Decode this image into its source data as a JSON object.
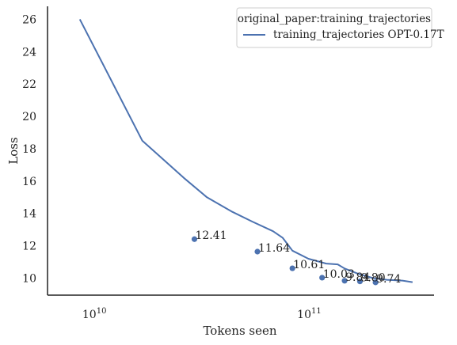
{
  "chart_data": {
    "type": "line",
    "xlabel": "Tokens seen",
    "ylabel": "Loss",
    "x_scale": "log",
    "xlim": [
      5800000000,
      365000000000
    ],
    "ylim": [
      8.95,
      26.8
    ],
    "x_ticks": [
      {
        "value": 10000000000,
        "base": "10",
        "exp": "10"
      },
      {
        "value": 100000000000,
        "base": "10",
        "exp": "11"
      }
    ],
    "y_ticks": [
      10,
      12,
      14,
      16,
      18,
      20,
      22,
      24,
      26
    ],
    "grid": false,
    "legend": {
      "title": "original_paper:training_trajectories",
      "placement": "top-right",
      "entries": [
        "training_trajectories OPT-0.17T"
      ]
    },
    "series": [
      {
        "name": "training_trajectories OPT-0.17T",
        "color": "#4c72b0",
        "x": [
          8200000000,
          16000000000,
          25000000000,
          32000000000,
          42000000000,
          52000000000,
          65000000000,
          72000000000,
          80000000000,
          95000000000,
          115000000000,
          130000000000,
          140000000000,
          160000000000,
          190000000000,
          220000000000,
          260000000000,
          290000000000
        ],
        "y": [
          26.0,
          18.5,
          16.2,
          15.0,
          14.1,
          13.5,
          12.9,
          12.5,
          11.7,
          11.2,
          10.9,
          10.85,
          10.6,
          10.3,
          10.0,
          9.9,
          9.85,
          9.75
        ]
      }
    ],
    "points": {
      "color": "#4c72b0",
      "x": [
        28000000000,
        55000000000,
        80000000000,
        110000000000,
        140000000000,
        165000000000,
        195000000000
      ],
      "y": [
        12.41,
        11.64,
        10.61,
        10.03,
        9.84,
        9.8,
        9.74
      ],
      "labels": [
        "12.41",
        "11.64",
        "10.61",
        "10.03",
        "9.84",
        "9.80",
        "9.74"
      ]
    }
  }
}
